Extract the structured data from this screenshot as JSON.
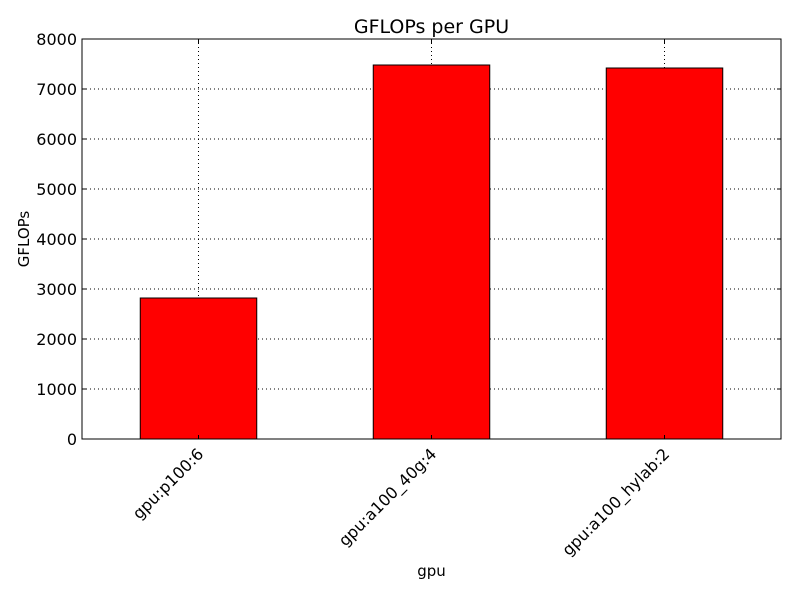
{
  "chart_data": {
    "type": "bar",
    "title": "GFLOPs per GPU",
    "xlabel": "gpu",
    "ylabel": "GFLOPs",
    "categories": [
      "gpu:p100:6",
      "gpu:a100_40g:4",
      "gpu:a100_hylab:2"
    ],
    "values": [
      2820,
      7480,
      7420
    ],
    "ylim": [
      0,
      8000
    ],
    "yticks": [
      "0",
      "1000",
      "2000",
      "3000",
      "4000",
      "5000",
      "6000",
      "7000",
      "8000"
    ],
    "grid": true,
    "legend": "none",
    "bar_color": "#ff0000",
    "edge_color": "#000000"
  }
}
